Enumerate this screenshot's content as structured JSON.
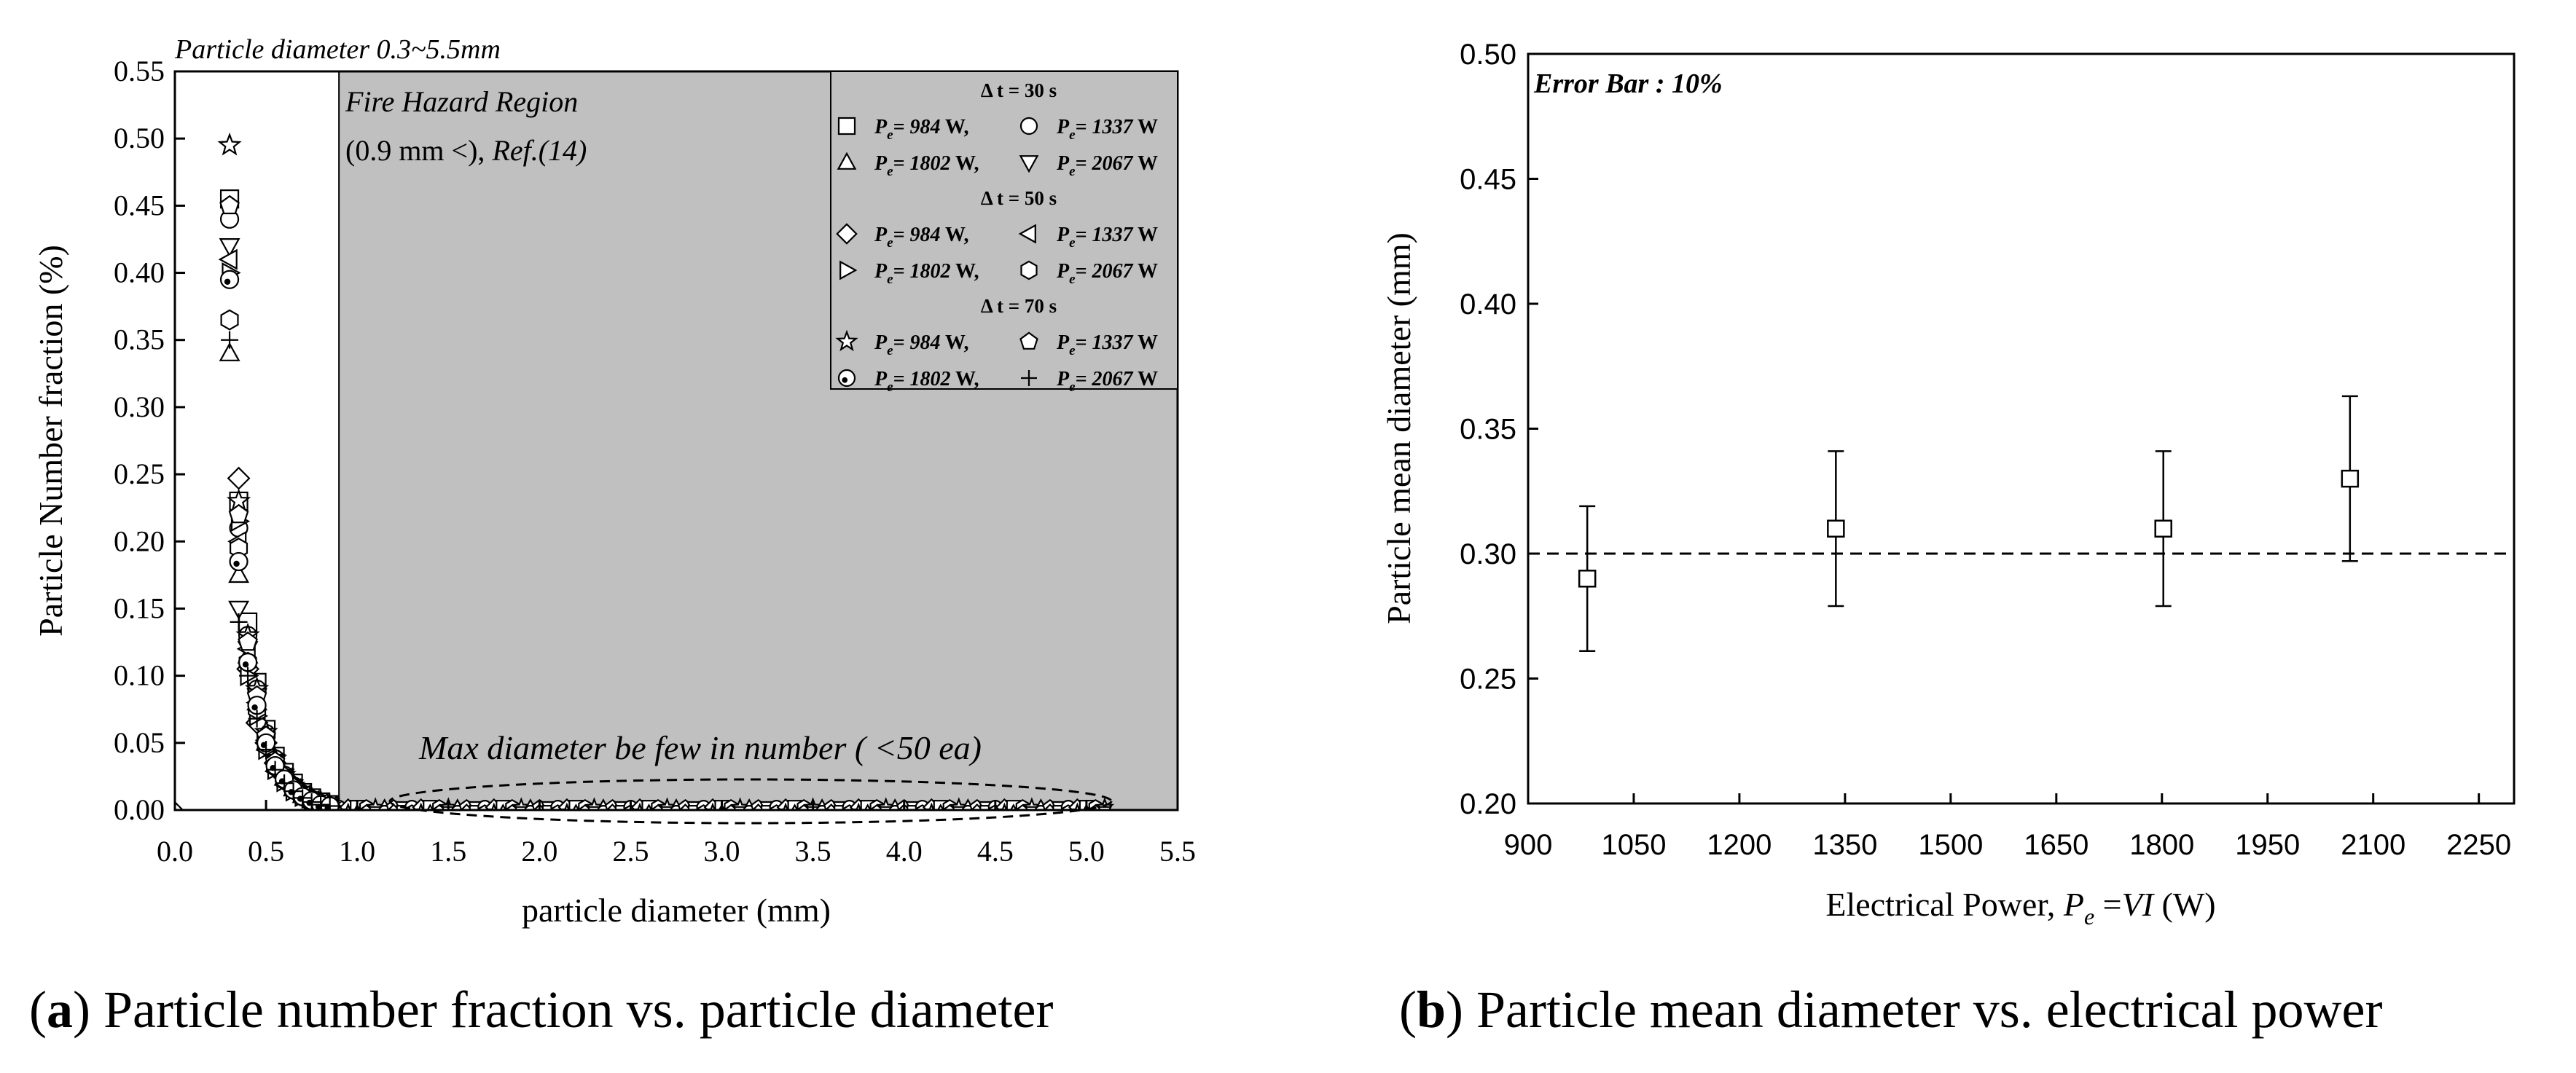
{
  "chart_data": [
    {
      "type": "scatter",
      "title": "Particle diameter 0.3~5.5mm",
      "xlabel": "particle diameter (mm)",
      "ylabel": "Particle Number fraction (%)",
      "xlim": [
        0.0,
        5.5
      ],
      "ylim": [
        0.0,
        0.55
      ],
      "xticks": [
        "0.0",
        "0.5",
        "1.0",
        "1.5",
        "2.0",
        "2.5",
        "3.0",
        "3.5",
        "4.0",
        "4.5",
        "5.0",
        "5.5"
      ],
      "yticks": [
        "0.00",
        "0.05",
        "0.10",
        "0.15",
        "0.20",
        "0.25",
        "0.30",
        "0.35",
        "0.40",
        "0.45",
        "0.50",
        "0.55"
      ],
      "shaded_region": {
        "x_from": 0.9,
        "x_to": 5.5,
        "color": "#c0c0c0",
        "label_line1": "Fire Hazard Region",
        "label_line2_a": "(0.9 mm <), ",
        "label_line2_b": "Ref.(14)"
      },
      "annotation": "Max diameter be few in number ( <50 ea)",
      "legend": {
        "placement": "top-right",
        "groups": [
          {
            "header": "Δ t = 30 s",
            "rows": [
              [
                {
                  "marker": "square",
                  "label_a": "= 984",
                  "label_b": " W,"
                },
                {
                  "marker": "circle",
                  "label_a": "= 1337",
                  "label_b": " W"
                }
              ],
              [
                {
                  "marker": "triangle-up",
                  "label_a": "= 1802",
                  "label_b": " W,"
                },
                {
                  "marker": "triangle-down",
                  "label_a": "= 2067",
                  "label_b": " W"
                }
              ]
            ]
          },
          {
            "header": "Δ t = 50 s",
            "rows": [
              [
                {
                  "marker": "diamond",
                  "label_a": "= 984",
                  "label_b": " W,"
                },
                {
                  "marker": "triangle-left",
                  "label_a": "= 1337",
                  "label_b": " W"
                }
              ],
              [
                {
                  "marker": "triangle-right",
                  "label_a": "= 1802",
                  "label_b": " W,"
                },
                {
                  "marker": "hexagon",
                  "label_a": "= 2067",
                  "label_b": " W"
                }
              ]
            ]
          },
          {
            "header": "Δ t = 70 s",
            "rows": [
              [
                {
                  "marker": "star",
                  "label_a": "= 984",
                  "label_b": " W,"
                },
                {
                  "marker": "pentagon",
                  "label_a": "= 1337",
                  "label_b": " W"
                }
              ],
              [
                {
                  "marker": "circle-dot",
                  "label_a": "= 1802",
                  "label_b": " W,"
                },
                {
                  "marker": "plus",
                  "label_a": "= 2067",
                  "label_b": " W"
                }
              ]
            ]
          }
        ],
        "pe_symbol": "P",
        "pe_sub": "e"
      },
      "series": [
        {
          "name": "Δt=30s Pe=984 W",
          "marker": "square",
          "points": [
            [
              0.3,
              0.455
            ],
            [
              0.35,
              0.23
            ],
            [
              0.4,
              0.14
            ],
            [
              0.45,
              0.095
            ],
            [
              0.5,
              0.06
            ],
            [
              0.55,
              0.04
            ],
            [
              0.6,
              0.028
            ],
            [
              0.65,
              0.02
            ],
            [
              0.7,
              0.013
            ],
            [
              0.75,
              0.009
            ],
            [
              0.8,
              0.006
            ],
            [
              0.85,
              0.004
            ]
          ]
        },
        {
          "name": "Δt=30s Pe=1337 W",
          "marker": "circle",
          "points": [
            [
              0.3,
              0.44
            ],
            [
              0.35,
              0.21
            ],
            [
              0.4,
              0.13
            ],
            [
              0.45,
              0.09
            ],
            [
              0.5,
              0.057
            ],
            [
              0.55,
              0.038
            ],
            [
              0.6,
              0.026
            ],
            [
              0.65,
              0.018
            ],
            [
              0.7,
              0.012
            ],
            [
              0.75,
              0.008
            ],
            [
              0.8,
              0.005
            ],
            [
              0.85,
              0.003
            ]
          ]
        },
        {
          "name": "Δt=30s Pe=1802 W",
          "marker": "triangle-up",
          "points": [
            [
              0.3,
              0.34
            ],
            [
              0.35,
              0.175
            ],
            [
              0.4,
              0.115
            ],
            [
              0.45,
              0.08
            ],
            [
              0.5,
              0.05
            ],
            [
              0.55,
              0.034
            ],
            [
              0.6,
              0.024
            ],
            [
              0.65,
              0.016
            ],
            [
              0.7,
              0.011
            ],
            [
              0.75,
              0.007
            ],
            [
              0.8,
              0.005
            ],
            [
              0.85,
              0.003
            ]
          ]
        },
        {
          "name": "Δt=30s Pe=2067 W",
          "marker": "triangle-down",
          "points": [
            [
              0.3,
              0.42
            ],
            [
              0.35,
              0.15
            ],
            [
              0.4,
              0.12
            ],
            [
              0.45,
              0.085
            ],
            [
              0.5,
              0.055
            ],
            [
              0.55,
              0.036
            ],
            [
              0.6,
              0.025
            ],
            [
              0.65,
              0.017
            ],
            [
              0.7,
              0.011
            ],
            [
              0.75,
              0.008
            ],
            [
              0.8,
              0.005
            ],
            [
              0.85,
              0.003
            ]
          ]
        },
        {
          "name": "Δt=50s Pe=984 W",
          "marker": "diamond",
          "points": [
            [
              0.35,
              0.247
            ],
            [
              0.4,
              0.105
            ],
            [
              0.45,
              0.065
            ],
            [
              0.5,
              0.05
            ],
            [
              0.55,
              0.035
            ],
            [
              0.6,
              0.025
            ],
            [
              0.65,
              0.018
            ],
            [
              0.7,
              0.012
            ],
            [
              0.75,
              0.008
            ],
            [
              0.8,
              0.005
            ],
            [
              0.85,
              0.003
            ]
          ]
        },
        {
          "name": "Δt=50s Pe=1337 W",
          "marker": "triangle-left",
          "points": [
            [
              0.3,
              0.41
            ],
            [
              0.35,
              0.2
            ],
            [
              0.4,
              0.12
            ],
            [
              0.45,
              0.08
            ],
            [
              0.5,
              0.052
            ],
            [
              0.55,
              0.035
            ],
            [
              0.6,
              0.024
            ],
            [
              0.65,
              0.016
            ],
            [
              0.7,
              0.011
            ],
            [
              0.75,
              0.007
            ],
            [
              0.8,
              0.005
            ],
            [
              0.85,
              0.003
            ]
          ]
        },
        {
          "name": "Δt=50s Pe=1802 W",
          "marker": "triangle-right",
          "points": [
            [
              0.3,
              0.4
            ],
            [
              0.35,
              0.215
            ],
            [
              0.4,
              0.1
            ],
            [
              0.45,
              0.07
            ],
            [
              0.5,
              0.045
            ],
            [
              0.55,
              0.03
            ],
            [
              0.6,
              0.021
            ],
            [
              0.65,
              0.014
            ],
            [
              0.7,
              0.01
            ],
            [
              0.75,
              0.007
            ],
            [
              0.8,
              0.004
            ],
            [
              0.85,
              0.003
            ]
          ]
        },
        {
          "name": "Δt=50s Pe=2067 W",
          "marker": "hexagon",
          "points": [
            [
              0.3,
              0.365
            ],
            [
              0.35,
              0.195
            ],
            [
              0.4,
              0.11
            ],
            [
              0.45,
              0.075
            ],
            [
              0.5,
              0.048
            ],
            [
              0.55,
              0.032
            ],
            [
              0.6,
              0.022
            ],
            [
              0.65,
              0.015
            ],
            [
              0.7,
              0.01
            ],
            [
              0.75,
              0.007
            ],
            [
              0.8,
              0.004
            ],
            [
              0.85,
              0.003
            ]
          ]
        },
        {
          "name": "Δt=70s Pe=984 W",
          "marker": "star",
          "points": [
            [
              0.3,
              0.495
            ],
            [
              0.35,
              0.23
            ],
            [
              0.4,
              0.13
            ],
            [
              0.45,
              0.09
            ],
            [
              0.5,
              0.058
            ],
            [
              0.55,
              0.038
            ],
            [
              0.6,
              0.026
            ],
            [
              0.65,
              0.018
            ],
            [
              0.7,
              0.012
            ],
            [
              0.75,
              0.008
            ],
            [
              0.8,
              0.005
            ],
            [
              0.85,
              0.003
            ]
          ]
        },
        {
          "name": "Δt=70s Pe=1337 W",
          "marker": "pentagon",
          "points": [
            [
              0.3,
              0.45
            ],
            [
              0.35,
              0.22
            ],
            [
              0.4,
              0.125
            ],
            [
              0.45,
              0.085
            ],
            [
              0.5,
              0.055
            ],
            [
              0.55,
              0.036
            ],
            [
              0.6,
              0.025
            ],
            [
              0.65,
              0.017
            ],
            [
              0.7,
              0.011
            ],
            [
              0.75,
              0.007
            ],
            [
              0.8,
              0.005
            ],
            [
              0.85,
              0.003
            ]
          ]
        },
        {
          "name": "Δt=70s Pe=1802 W",
          "marker": "circle-dot",
          "points": [
            [
              0.3,
              0.395
            ],
            [
              0.35,
              0.185
            ],
            [
              0.4,
              0.11
            ],
            [
              0.45,
              0.078
            ],
            [
              0.5,
              0.05
            ],
            [
              0.55,
              0.033
            ],
            [
              0.6,
              0.023
            ],
            [
              0.65,
              0.015
            ],
            [
              0.7,
              0.01
            ],
            [
              0.75,
              0.007
            ],
            [
              0.8,
              0.004
            ],
            [
              0.85,
              0.003
            ]
          ]
        },
        {
          "name": "Δt=70s Pe=2067 W",
          "marker": "plus",
          "points": [
            [
              0.3,
              0.35
            ],
            [
              0.35,
              0.14
            ],
            [
              0.4,
              0.1
            ],
            [
              0.45,
              0.068
            ],
            [
              0.5,
              0.045
            ],
            [
              0.55,
              0.03
            ],
            [
              0.6,
              0.02
            ],
            [
              0.65,
              0.014
            ],
            [
              0.7,
              0.009
            ],
            [
              0.75,
              0.006
            ],
            [
              0.8,
              0.004
            ],
            [
              0.85,
              0.003
            ]
          ]
        }
      ],
      "tail": {
        "x_from": 0.9,
        "x_to": 5.1,
        "step": 0.05,
        "value": 0.001
      },
      "baseline_point": {
        "x": 0.0,
        "y": 0.0
      }
    },
    {
      "type": "scatter",
      "title": "Error Bar : 10%",
      "xlabel_a": "Electrical Power, ",
      "xlabel_p": "P",
      "xlabel_sub": "e",
      "xlabel_b": " =",
      "xlabel_vi": "VI",
      "xlabel_c": " (W)",
      "ylabel": "Particle mean diameter (mm)",
      "xlim": [
        900,
        2300
      ],
      "ylim": [
        0.2,
        0.5
      ],
      "xticks": [
        "900",
        "1050",
        "1200",
        "1350",
        "1500",
        "1650",
        "1800",
        "1950",
        "2100",
        "2250"
      ],
      "yticks": [
        "0.20",
        "0.25",
        "0.30",
        "0.35",
        "0.40",
        "0.45",
        "0.50"
      ],
      "reference_line": 0.3,
      "x": [
        984,
        1337,
        1802,
        2067
      ],
      "values": [
        0.29,
        0.31,
        0.31,
        0.33
      ],
      "error_low": [
        0.261,
        0.279,
        0.279,
        0.297
      ],
      "error_high": [
        0.319,
        0.341,
        0.341,
        0.363
      ]
    }
  ],
  "captions": {
    "a_label": "a",
    "a_text": " Particle number fraction vs. particle diameter",
    "b_label": "b",
    "b_text": " Particle mean diameter vs. electrical power"
  }
}
